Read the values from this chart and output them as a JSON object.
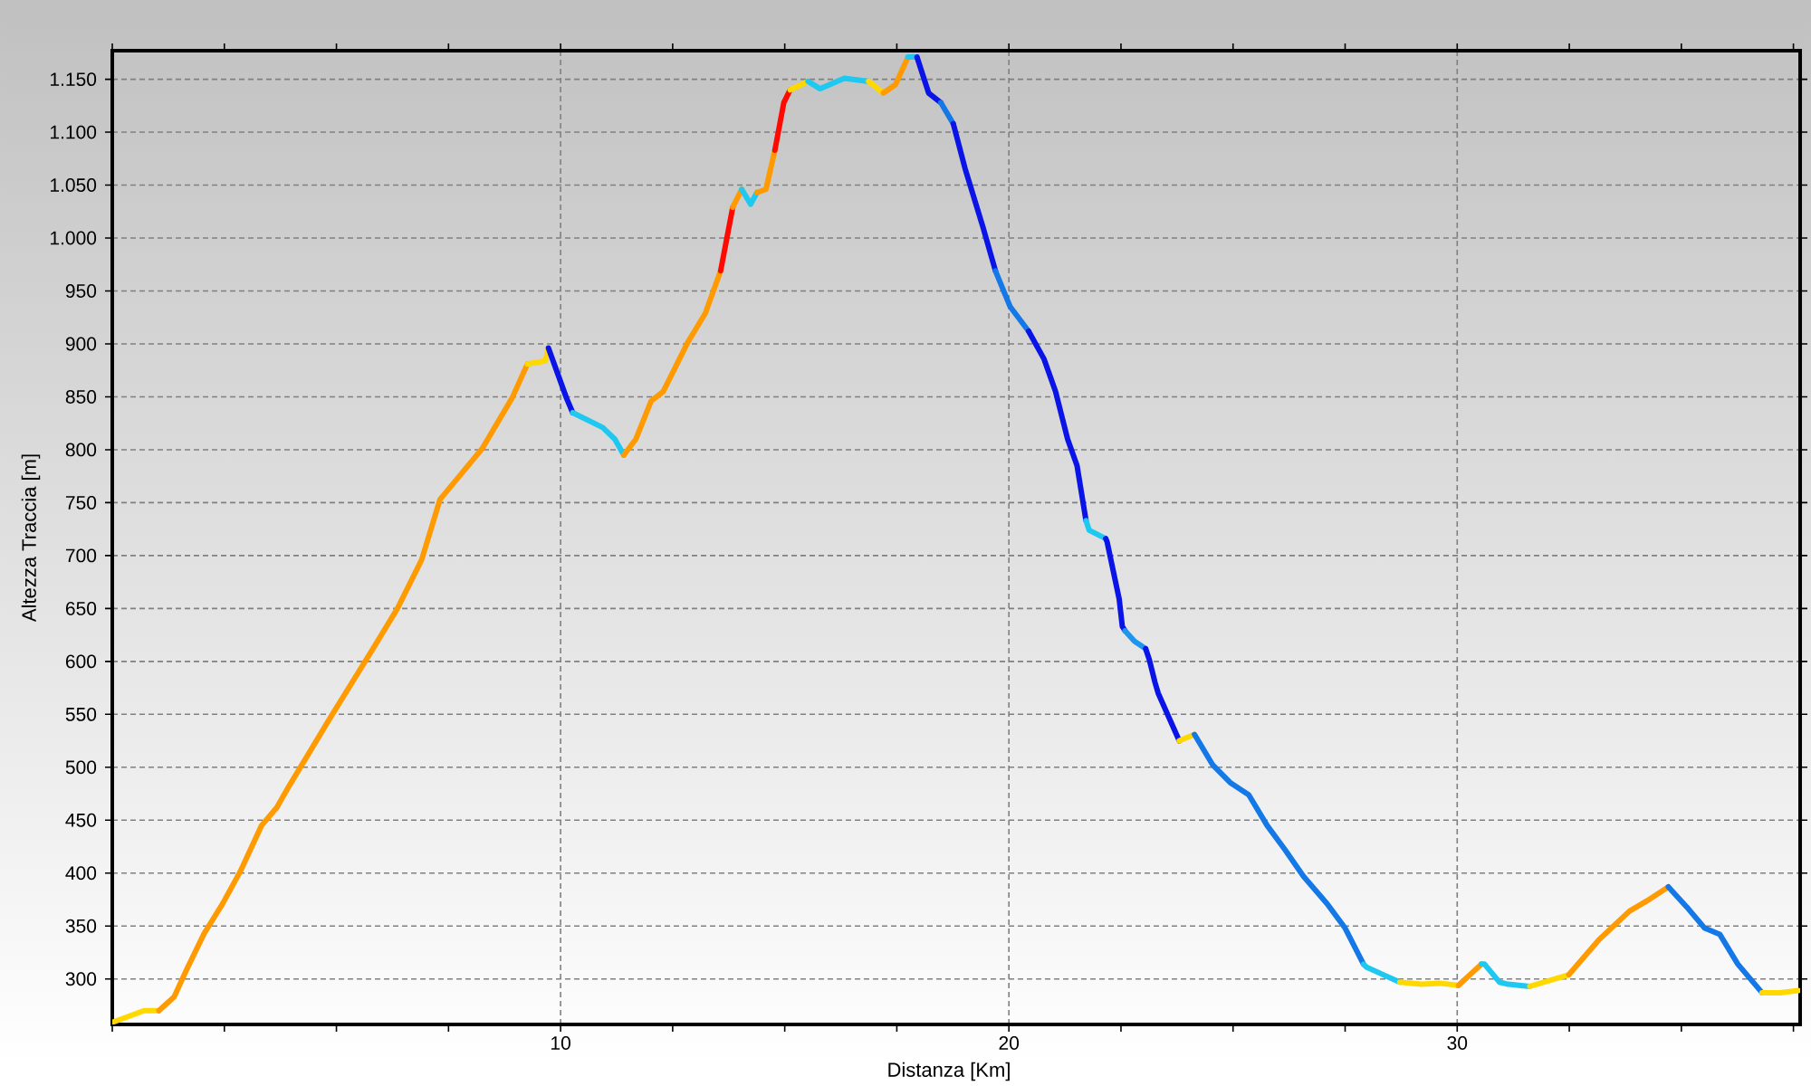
{
  "chart_data": {
    "type": "line",
    "xlabel": "Distanza [Km]",
    "ylabel": "Altezza Traccia [m]",
    "xlim": [
      0,
      37.65
    ],
    "ylim": [
      257,
      1177
    ],
    "xticks": [
      {
        "value": 0,
        "label": null
      },
      {
        "value": 2.5,
        "label": null
      },
      {
        "value": 5,
        "label": null
      },
      {
        "value": 7.5,
        "label": null
      },
      10,
      {
        "value": 12.5,
        "label": null
      },
      {
        "value": 15,
        "label": null
      },
      {
        "value": 17.5,
        "label": null
      },
      20,
      {
        "value": 22.5,
        "label": null
      },
      {
        "value": 25,
        "label": null
      },
      {
        "value": 27.5,
        "label": null
      },
      30,
      {
        "value": 32.5,
        "label": null
      },
      {
        "value": 35,
        "label": null
      },
      {
        "value": 37.5,
        "label": null
      }
    ],
    "yticks": [
      300,
      350,
      400,
      450,
      500,
      550,
      600,
      650,
      700,
      750,
      800,
      850,
      900,
      950,
      {
        "value": 1000,
        "label": "1.000"
      },
      {
        "value": 1050,
        "label": "1.050"
      },
      {
        "value": 1100,
        "label": "1.100"
      },
      {
        "value": 1150,
        "label": "1.150"
      }
    ],
    "grid": true,
    "series": [
      {
        "color": "#ffd800",
        "x": [
          0,
          0.71,
          1.04
        ],
        "values": [
          259,
          270,
          270
        ]
      },
      {
        "color": "#ff9a00",
        "x": [
          1.04,
          1.38,
          1.65,
          2.05,
          2.46,
          2.86,
          3.33,
          3.67,
          3.94,
          4.88,
          5.83,
          6.36,
          6.9,
          7.31,
          8.25,
          8.92,
          9.26
        ],
        "values": [
          270,
          283,
          308,
          343,
          371,
          402,
          445,
          462,
          482,
          548,
          613,
          650,
          696,
          753,
          801,
          849,
          881
        ]
      },
      {
        "color": "#ffd800",
        "x": [
          9.26,
          9.66,
          9.73
        ],
        "values": [
          881,
          884,
          896
        ]
      },
      {
        "color": "#0a14e6",
        "x": [
          9.73,
          10.13,
          10.27
        ],
        "values": [
          896,
          849,
          835
        ]
      },
      {
        "color": "#1ec8f0",
        "x": [
          10.27,
          10.94,
          11.21,
          11.41
        ],
        "values": [
          835,
          821,
          810,
          795
        ]
      },
      {
        "color": "#ff9a00",
        "x": [
          11.41,
          11.68,
          12.02,
          12.29,
          12.83,
          13.23,
          13.57
        ],
        "values": [
          795,
          810,
          846,
          855,
          901,
          929,
          969
        ]
      },
      {
        "color": "#ff0a00",
        "x": [
          13.57,
          13.7,
          13.84
        ],
        "values": [
          969,
          998,
          1029
        ]
      },
      {
        "color": "#ff9a00",
        "x": [
          13.84,
          14.04
        ],
        "values": [
          1029,
          1046
        ]
      },
      {
        "color": "#1ec8f0",
        "x": [
          14.04,
          14.24,
          14.38
        ],
        "values": [
          1046,
          1032,
          1043
        ]
      },
      {
        "color": "#ff9a00",
        "x": [
          14.38,
          14.58,
          14.78
        ],
        "values": [
          1043,
          1046,
          1083
        ]
      },
      {
        "color": "#ff0a00",
        "x": [
          14.78,
          14.98,
          15.12
        ],
        "values": [
          1083,
          1128,
          1140
        ]
      },
      {
        "color": "#ffd800",
        "x": [
          15.12,
          15.52
        ],
        "values": [
          1140,
          1148
        ]
      },
      {
        "color": "#1ec8f0",
        "x": [
          15.52,
          15.79,
          16.33,
          16.87
        ],
        "values": [
          1148,
          1141,
          1151,
          1148
        ]
      },
      {
        "color": "#ffd800",
        "x": [
          16.87,
          17.2
        ],
        "values": [
          1148,
          1137
        ]
      },
      {
        "color": "#ff9a00",
        "x": [
          17.2,
          17.47,
          17.75
        ],
        "values": [
          1137,
          1145,
          1171
        ]
      },
      {
        "color": "#1ec8f0",
        "x": [
          17.75,
          17.95
        ],
        "values": [
          1171,
          1171
        ]
      },
      {
        "color": "#0a14e6",
        "x": [
          17.95,
          18.21,
          18.48
        ],
        "values": [
          1171,
          1137,
          1128
        ]
      },
      {
        "color": "#1478e6",
        "x": [
          18.48,
          18.76
        ],
        "values": [
          1128,
          1108
        ]
      },
      {
        "color": "#0a14e6",
        "x": [
          18.76,
          19.02,
          19.43,
          19.7
        ],
        "values": [
          1108,
          1066,
          1009,
          969
        ]
      },
      {
        "color": "#1478e6",
        "x": [
          19.7,
          20.03,
          20.44
        ],
        "values": [
          969,
          935,
          912
        ]
      },
      {
        "color": "#0a14e6",
        "x": [
          20.44,
          20.78,
          21.04,
          21.31,
          21.52,
          21.72
        ],
        "values": [
          912,
          886,
          855,
          810,
          785,
          733
        ]
      },
      {
        "color": "#1ec8f0",
        "x": [
          21.72,
          21.79,
          22.16
        ],
        "values": [
          733,
          724,
          716
        ]
      },
      {
        "color": "#0a14e6",
        "x": [
          22.16,
          22.19,
          22.46,
          22.53,
          22.59
        ],
        "values": [
          716,
          713,
          659,
          633,
          629
        ]
      },
      {
        "color": "#1e96f0",
        "x": [
          22.59,
          22.8,
          23.05
        ],
        "values": [
          629,
          619,
          612
        ]
      },
      {
        "color": "#0a14e6",
        "x": [
          23.05,
          23.13,
          23.26,
          23.33,
          23.8
        ],
        "values": [
          612,
          602,
          580,
          570,
          525
        ]
      },
      {
        "color": "#ffd800",
        "x": [
          23.8,
          24.14
        ],
        "values": [
          525,
          531
        ]
      },
      {
        "color": "#1478e6",
        "x": [
          24.14,
          24.55,
          24.95,
          25.35,
          25.76,
          26.16,
          26.57,
          27.1,
          27.5,
          27.91
        ],
        "values": [
          531,
          502,
          485,
          474,
          445,
          422,
          397,
          371,
          348,
          314
        ]
      },
      {
        "color": "#1ec8f0",
        "x": [
          27.91,
          27.98,
          28.72
        ],
        "values": [
          314,
          311,
          297
        ]
      },
      {
        "color": "#ffd800",
        "x": [
          28.72,
          29.2,
          29.6,
          30.03
        ],
        "values": [
          297,
          295,
          296,
          294
        ]
      },
      {
        "color": "#ff9a00",
        "x": [
          30.03,
          30.54
        ],
        "values": [
          294,
          314
        ]
      },
      {
        "color": "#1ec8f0",
        "x": [
          30.54,
          30.61,
          30.94,
          31.14,
          31.62
        ],
        "values": [
          314,
          314,
          297,
          295,
          293
        ]
      },
      {
        "color": "#ffd800",
        "x": [
          31.62,
          32.49
        ],
        "values": [
          293,
          304
        ]
      },
      {
        "color": "#ff9a00",
        "x": [
          32.49,
          33.16,
          33.84,
          34.24,
          34.71
        ],
        "values": [
          304,
          337,
          364,
          374,
          387
        ]
      },
      {
        "color": "#1478e6",
        "x": [
          34.71,
          35.12,
          35.52,
          35.86,
          36.26,
          36.8
        ],
        "values": [
          387,
          368,
          348,
          342,
          314,
          287
        ]
      },
      {
        "color": "#ffd800",
        "x": [
          36.8,
          37.2,
          37.61
        ],
        "values": [
          287,
          287,
          289
        ]
      }
    ]
  }
}
